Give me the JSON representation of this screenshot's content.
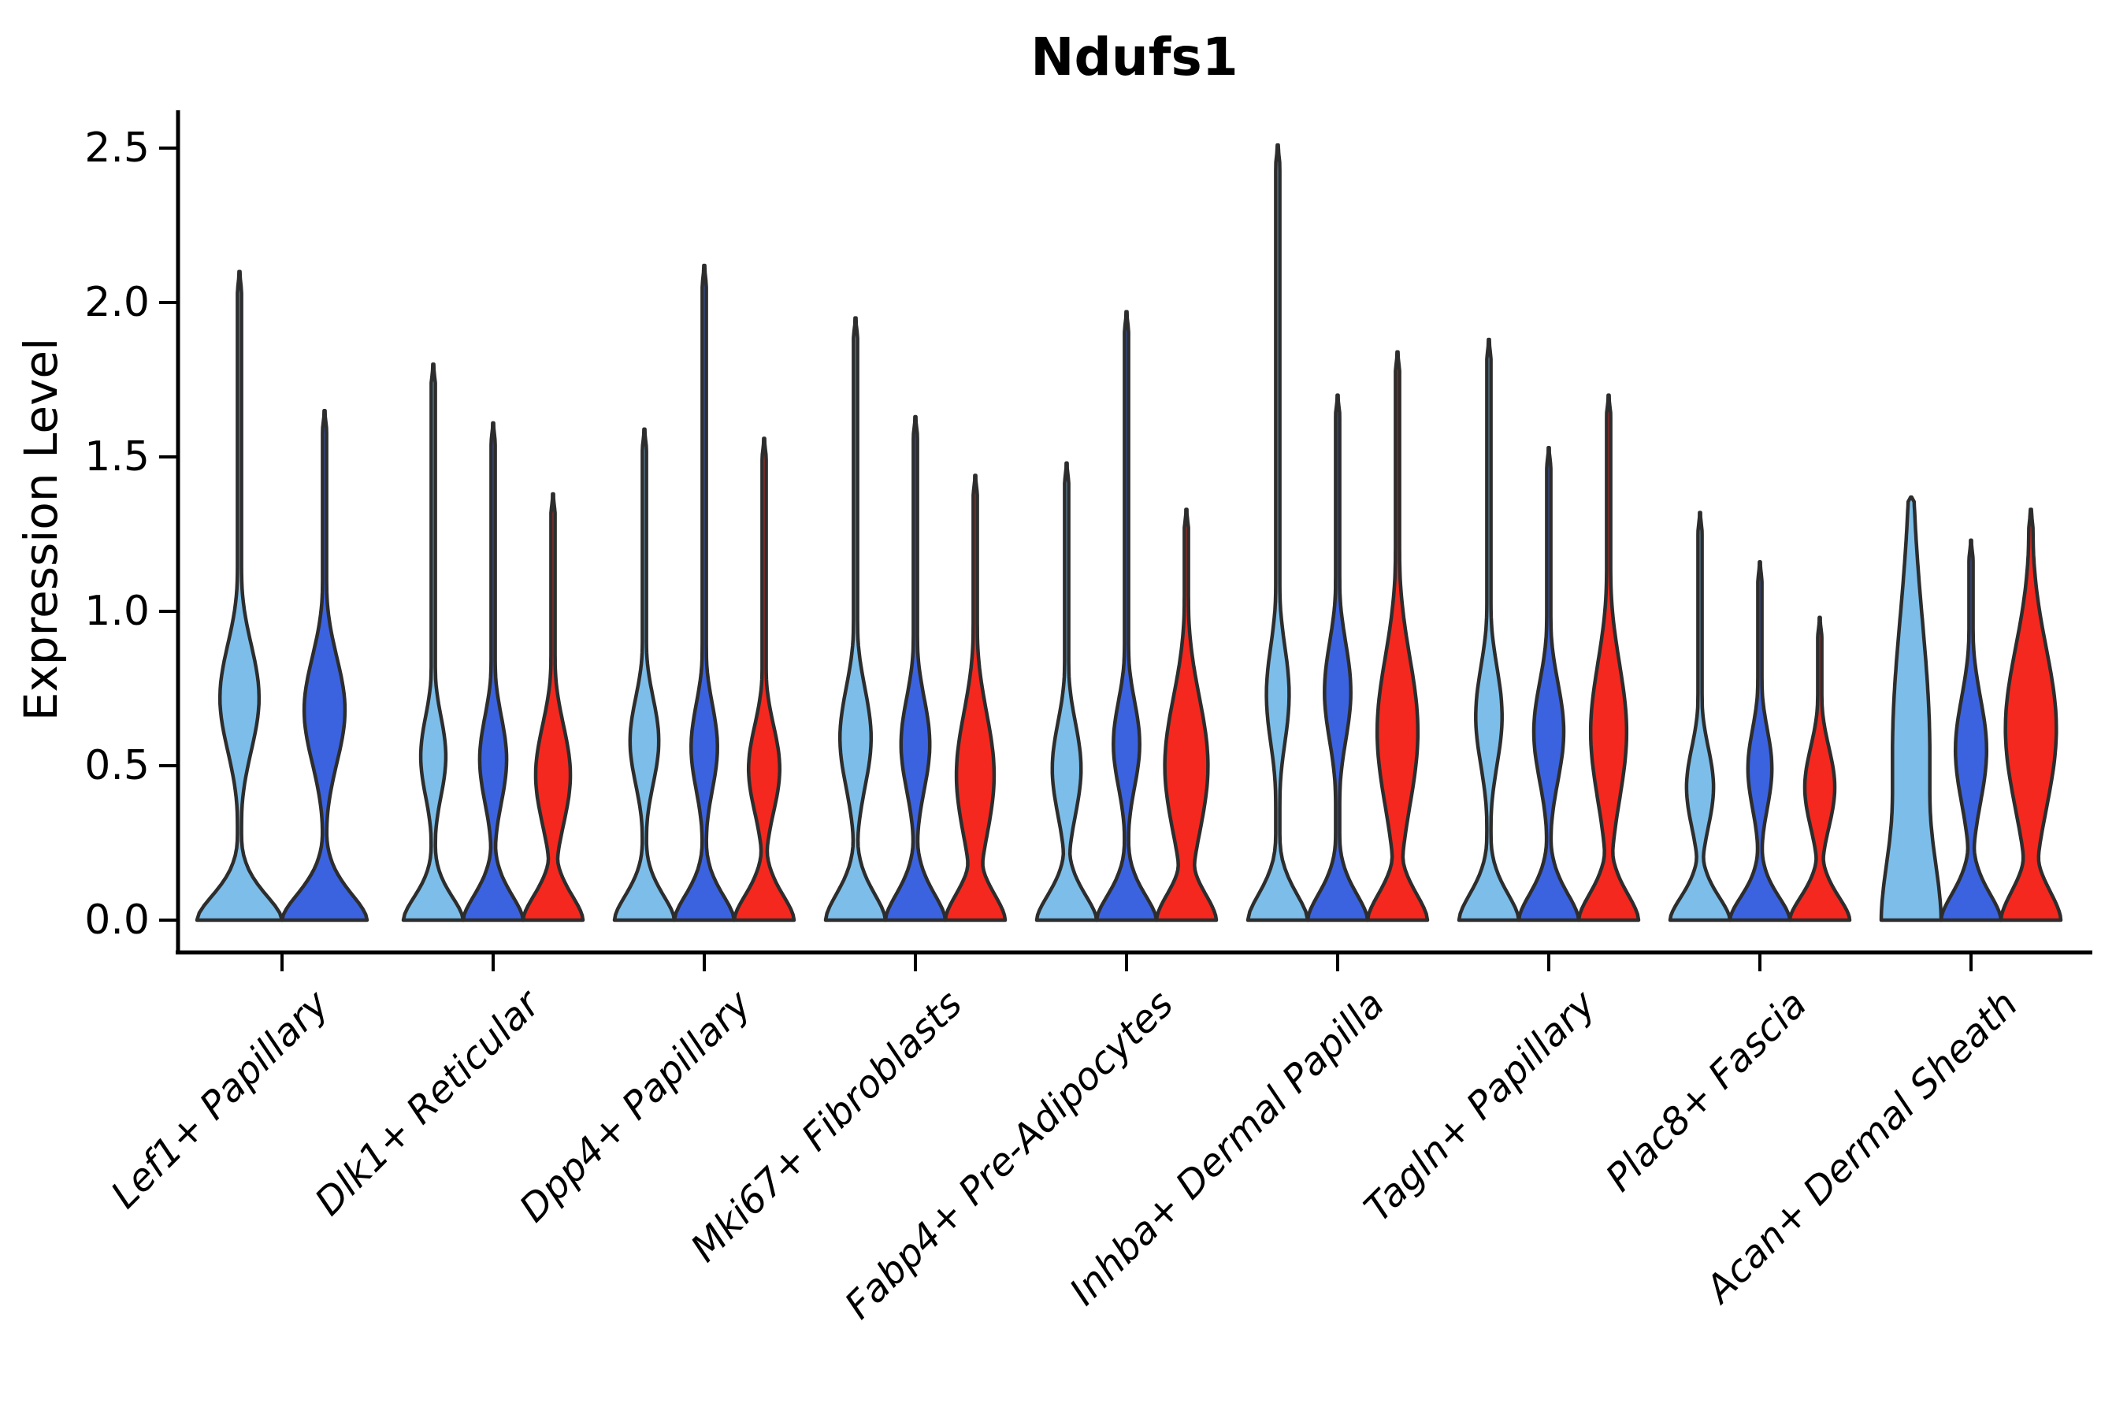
{
  "chart_data": {
    "type": "violin",
    "title": "Ndufs1",
    "ylabel": "Expression Level",
    "xlabel": "",
    "ylim": [
      0,
      2.6
    ],
    "yticks": [
      0.0,
      0.5,
      1.0,
      1.5,
      2.0,
      2.5
    ],
    "ytick_labels": [
      "0.0",
      "0.5",
      "1.0",
      "1.5",
      "2.0",
      "2.5"
    ],
    "grid": false,
    "legend_position": "none",
    "series_colors": {
      "light_blue": "#7CBEE9",
      "dark_blue": "#3B63E0",
      "red": "#F4281E"
    },
    "outline_color": "#2D2D2D",
    "axis_color": "#000000",
    "categories": [
      "Lef1+ Papillary",
      "Dlk1+ Reticular",
      "Dpp4+ Papillary",
      "Mki67+ Fibroblasts",
      "Fabp4+ Pre-Adipocytes",
      "Inhba+ Dermal Papilla",
      "Tagln+ Papillary",
      "Plac8+ Fascia",
      "Acan+ Dermal Sheath"
    ],
    "groups": [
      {
        "category": "Lef1+ Papillary",
        "violins": [
          {
            "color": "light_blue",
            "max": 2.1,
            "bulge_center": 0.72,
            "bulge_sigma": 0.17,
            "bulge_width": 0.46,
            "base_sigma": 0.085
          },
          {
            "color": "dark_blue",
            "max": 1.65,
            "bulge_center": 0.68,
            "bulge_sigma": 0.17,
            "bulge_width": 0.48,
            "base_sigma": 0.09
          }
        ]
      },
      {
        "category": "Dlk1+ Reticular",
        "violins": [
          {
            "color": "light_blue",
            "max": 1.8,
            "bulge_center": 0.53,
            "bulge_sigma": 0.13,
            "bulge_width": 0.42,
            "base_sigma": 0.08
          },
          {
            "color": "dark_blue",
            "max": 1.61,
            "bulge_center": 0.52,
            "bulge_sigma": 0.14,
            "bulge_width": 0.45,
            "base_sigma": 0.085
          },
          {
            "color": "red",
            "max": 1.38,
            "bulge_center": 0.47,
            "bulge_sigma": 0.16,
            "bulge_width": 0.58,
            "base_sigma": 0.085
          }
        ]
      },
      {
        "category": "Dpp4+ Papillary",
        "violins": [
          {
            "color": "light_blue",
            "max": 1.59,
            "bulge_center": 0.58,
            "bulge_sigma": 0.14,
            "bulge_width": 0.48,
            "base_sigma": 0.085
          },
          {
            "color": "dark_blue",
            "max": 2.12,
            "bulge_center": 0.56,
            "bulge_sigma": 0.14,
            "bulge_width": 0.44,
            "base_sigma": 0.085
          },
          {
            "color": "red",
            "max": 1.56,
            "bulge_center": 0.49,
            "bulge_sigma": 0.14,
            "bulge_width": 0.52,
            "base_sigma": 0.085
          }
        ]
      },
      {
        "category": "Mki67+ Fibroblasts",
        "violins": [
          {
            "color": "light_blue",
            "max": 1.95,
            "bulge_center": 0.59,
            "bulge_sigma": 0.16,
            "bulge_width": 0.52,
            "base_sigma": 0.09
          },
          {
            "color": "dark_blue",
            "max": 1.63,
            "bulge_center": 0.57,
            "bulge_sigma": 0.15,
            "bulge_width": 0.48,
            "base_sigma": 0.09
          },
          {
            "color": "red",
            "max": 1.44,
            "bulge_center": 0.47,
            "bulge_sigma": 0.2,
            "bulge_width": 0.63,
            "base_sigma": 0.09
          }
        ]
      },
      {
        "category": "Fabp4+ Pre-Adipocytes",
        "violins": [
          {
            "color": "light_blue",
            "max": 1.48,
            "bulge_center": 0.49,
            "bulge_sigma": 0.15,
            "bulge_width": 0.48,
            "base_sigma": 0.085
          },
          {
            "color": "dark_blue",
            "max": 1.97,
            "bulge_center": 0.57,
            "bulge_sigma": 0.14,
            "bulge_width": 0.44,
            "base_sigma": 0.085
          },
          {
            "color": "red",
            "max": 1.33,
            "bulge_center": 0.5,
            "bulge_sigma": 0.22,
            "bulge_width": 0.72,
            "base_sigma": 0.09
          }
        ]
      },
      {
        "category": "Inhba+ Dermal Papilla",
        "violins": [
          {
            "color": "light_blue",
            "max": 2.51,
            "bulge_center": 0.73,
            "bulge_sigma": 0.16,
            "bulge_width": 0.38,
            "base_sigma": 0.09
          },
          {
            "color": "dark_blue",
            "max": 1.7,
            "bulge_center": 0.74,
            "bulge_sigma": 0.16,
            "bulge_width": 0.44,
            "base_sigma": 0.09
          },
          {
            "color": "red",
            "max": 1.84,
            "bulge_center": 0.61,
            "bulge_sigma": 0.24,
            "bulge_width": 0.68,
            "base_sigma": 0.09
          }
        ]
      },
      {
        "category": "Tagln+ Papillary",
        "violins": [
          {
            "color": "light_blue",
            "max": 1.88,
            "bulge_center": 0.66,
            "bulge_sigma": 0.16,
            "bulge_width": 0.44,
            "base_sigma": 0.09
          },
          {
            "color": "dark_blue",
            "max": 1.53,
            "bulge_center": 0.61,
            "bulge_sigma": 0.16,
            "bulge_width": 0.5,
            "base_sigma": 0.09
          },
          {
            "color": "red",
            "max": 1.7,
            "bulge_center": 0.61,
            "bulge_sigma": 0.22,
            "bulge_width": 0.6,
            "base_sigma": 0.09
          }
        ]
      },
      {
        "category": "Plac8+ Fascia",
        "violins": [
          {
            "color": "light_blue",
            "max": 1.32,
            "bulge_center": 0.43,
            "bulge_sigma": 0.13,
            "bulge_width": 0.45,
            "base_sigma": 0.08
          },
          {
            "color": "dark_blue",
            "max": 1.16,
            "bulge_center": 0.49,
            "bulge_sigma": 0.13,
            "bulge_width": 0.4,
            "base_sigma": 0.08
          },
          {
            "color": "red",
            "max": 0.98,
            "bulge_center": 0.43,
            "bulge_sigma": 0.13,
            "bulge_width": 0.5,
            "base_sigma": 0.08
          }
        ]
      },
      {
        "category": "Acan+ Dermal Sheath",
        "violins": [
          {
            "color": "light_blue",
            "max": 1.37,
            "bulge_center": 0.55,
            "bulge_sigma": 0.42,
            "bulge_width": 0.62,
            "base_sigma": 0.3
          },
          {
            "color": "dark_blue",
            "max": 1.23,
            "bulge_center": 0.55,
            "bulge_sigma": 0.17,
            "bulge_width": 0.52,
            "base_sigma": 0.09
          },
          {
            "color": "red",
            "max": 1.33,
            "bulge_center": 0.62,
            "bulge_sigma": 0.26,
            "bulge_width": 0.85,
            "base_sigma": 0.1
          }
        ]
      }
    ]
  }
}
